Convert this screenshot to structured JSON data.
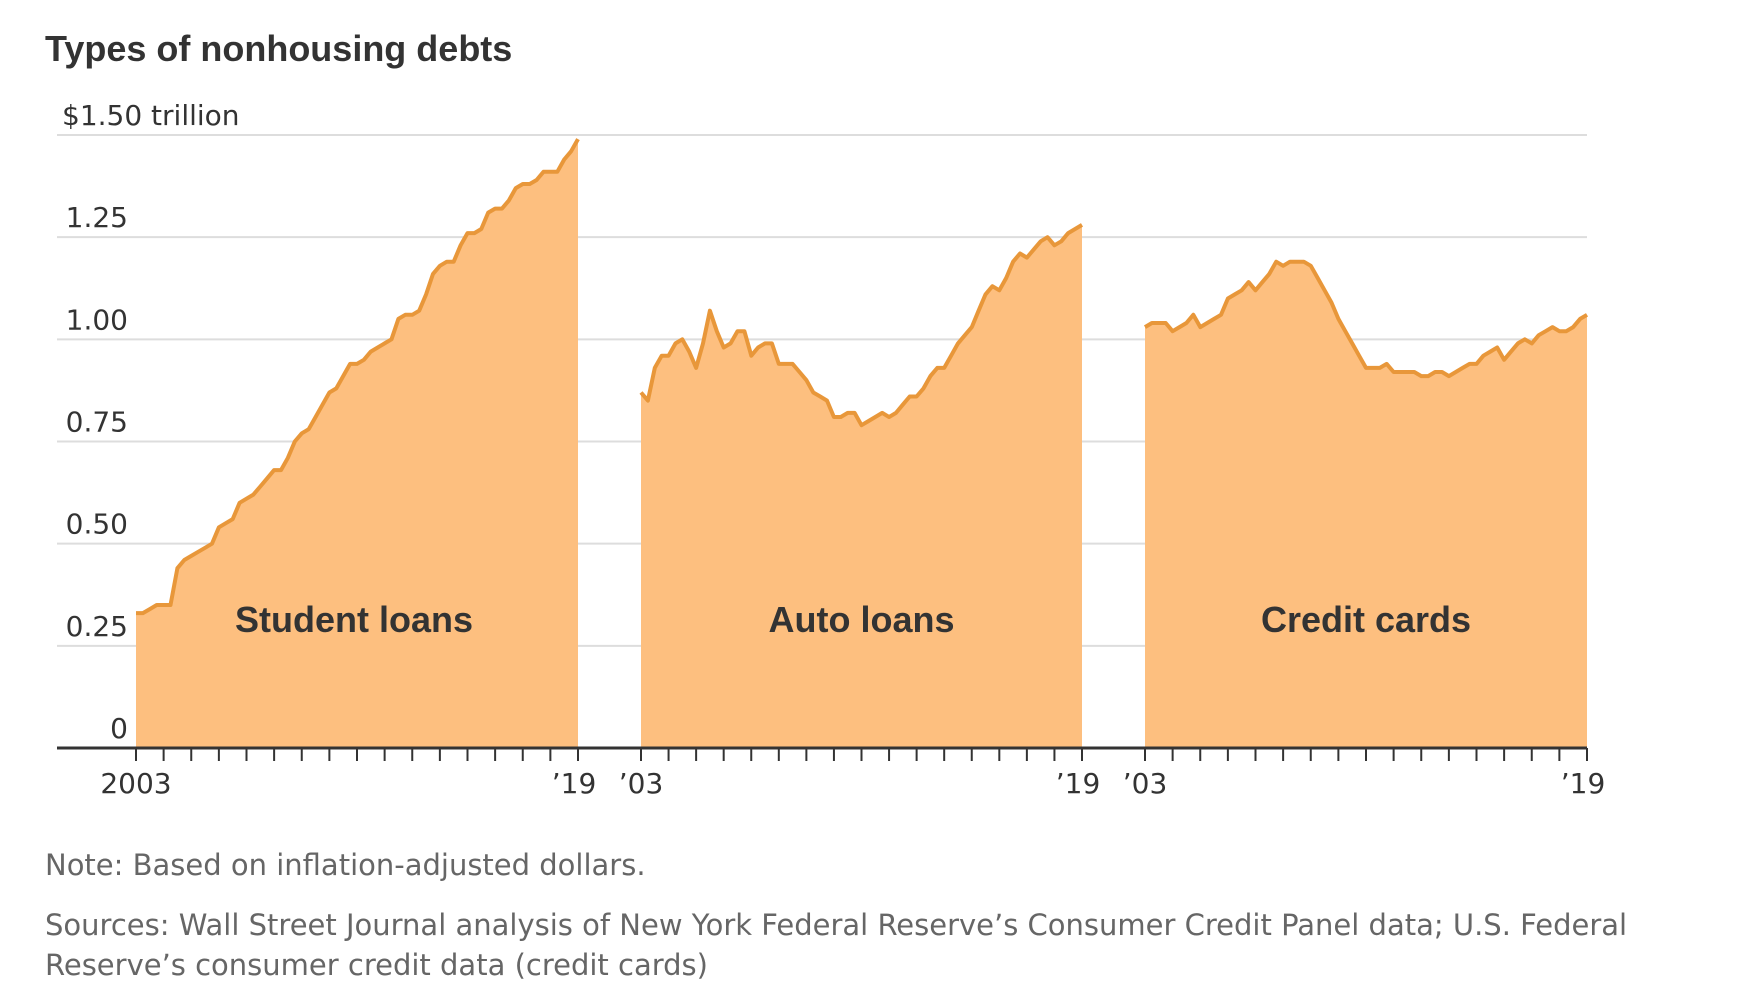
{
  "title": "Types of nonhousing debts",
  "note": "Note: Based on inflation-adjusted dollars.",
  "sources": "Sources: Wall Street Journal analysis of New York Federal Reserve’s Consumer Credit Panel data; U.S. Federal Reserve’s consumer credit data (credit cards)",
  "colors": {
    "fill": "#fdbf7f",
    "line": "#e8973a",
    "grid": "#dddddd",
    "axis": "#333333",
    "text": "#333333",
    "note": "#666666"
  },
  "chart_data": [
    {
      "type": "area",
      "panel_label": "Student loans",
      "start_tick_label": "2003",
      "end_tick_label": "’19",
      "x_range": [
        2003,
        2019
      ],
      "ylim": [
        0,
        1.5
      ],
      "y_ticks": [
        0,
        0.25,
        0.5,
        0.75,
        1.0,
        1.25,
        1.5
      ],
      "y_tick_labels": [
        "0",
        "0.25",
        "0.50",
        "0.75",
        "1.00",
        "1.25",
        "$1.50 trillion"
      ],
      "grid": true,
      "x": [
        2003.0,
        2003.25,
        2003.5,
        2003.75,
        2004.0,
        2004.25,
        2004.5,
        2004.75,
        2005.0,
        2005.25,
        2005.5,
        2005.75,
        2006.0,
        2006.25,
        2006.5,
        2006.75,
        2007.0,
        2007.25,
        2007.5,
        2007.75,
        2008.0,
        2008.25,
        2008.5,
        2008.75,
        2009.0,
        2009.25,
        2009.5,
        2009.75,
        2010.0,
        2010.25,
        2010.5,
        2010.75,
        2011.0,
        2011.25,
        2011.5,
        2011.75,
        2012.0,
        2012.25,
        2012.5,
        2012.75,
        2013.0,
        2013.25,
        2013.5,
        2013.75,
        2014.0,
        2014.25,
        2014.5,
        2014.75,
        2015.0,
        2015.25,
        2015.5,
        2015.75,
        2016.0,
        2016.25,
        2016.5,
        2016.75,
        2017.0,
        2017.25,
        2017.5,
        2017.75,
        2018.0,
        2018.25,
        2018.5,
        2018.75,
        2019.0
      ],
      "values": [
        0.33,
        0.33,
        0.34,
        0.35,
        0.35,
        0.35,
        0.44,
        0.46,
        0.47,
        0.48,
        0.49,
        0.5,
        0.54,
        0.55,
        0.56,
        0.6,
        0.61,
        0.62,
        0.64,
        0.66,
        0.68,
        0.68,
        0.71,
        0.75,
        0.77,
        0.78,
        0.81,
        0.84,
        0.87,
        0.88,
        0.91,
        0.94,
        0.94,
        0.95,
        0.97,
        0.98,
        0.99,
        1.0,
        1.05,
        1.06,
        1.06,
        1.07,
        1.11,
        1.16,
        1.18,
        1.19,
        1.19,
        1.23,
        1.26,
        1.26,
        1.27,
        1.31,
        1.32,
        1.32,
        1.34,
        1.37,
        1.38,
        1.38,
        1.39,
        1.41,
        1.41,
        1.41,
        1.44,
        1.46,
        1.49
      ]
    },
    {
      "type": "area",
      "panel_label": "Auto loans",
      "start_tick_label": "’03",
      "end_tick_label": "’19",
      "x_range": [
        2003,
        2019
      ],
      "ylim": [
        0,
        1.5
      ],
      "grid": true,
      "x": [
        2003.0,
        2003.25,
        2003.5,
        2003.75,
        2004.0,
        2004.25,
        2004.5,
        2004.75,
        2005.0,
        2005.25,
        2005.5,
        2005.75,
        2006.0,
        2006.25,
        2006.5,
        2006.75,
        2007.0,
        2007.25,
        2007.5,
        2007.75,
        2008.0,
        2008.25,
        2008.5,
        2008.75,
        2009.0,
        2009.25,
        2009.5,
        2009.75,
        2010.0,
        2010.25,
        2010.5,
        2010.75,
        2011.0,
        2011.25,
        2011.5,
        2011.75,
        2012.0,
        2012.25,
        2012.5,
        2012.75,
        2013.0,
        2013.25,
        2013.5,
        2013.75,
        2014.0,
        2014.25,
        2014.5,
        2014.75,
        2015.0,
        2015.25,
        2015.5,
        2015.75,
        2016.0,
        2016.25,
        2016.5,
        2016.75,
        2017.0,
        2017.25,
        2017.5,
        2017.75,
        2018.0,
        2018.25,
        2018.5,
        2018.75,
        2019.0
      ],
      "values": [
        0.87,
        0.85,
        0.93,
        0.96,
        0.96,
        0.99,
        1.0,
        0.97,
        0.93,
        0.99,
        1.07,
        1.02,
        0.98,
        0.99,
        1.02,
        1.02,
        0.96,
        0.98,
        0.99,
        0.99,
        0.94,
        0.94,
        0.94,
        0.92,
        0.9,
        0.87,
        0.86,
        0.85,
        0.81,
        0.81,
        0.82,
        0.82,
        0.79,
        0.8,
        0.81,
        0.82,
        0.81,
        0.82,
        0.84,
        0.86,
        0.86,
        0.88,
        0.91,
        0.93,
        0.93,
        0.96,
        0.99,
        1.01,
        1.03,
        1.07,
        1.11,
        1.13,
        1.12,
        1.15,
        1.19,
        1.21,
        1.2,
        1.22,
        1.24,
        1.25,
        1.23,
        1.24,
        1.26,
        1.27,
        1.28
      ]
    },
    {
      "type": "area",
      "panel_label": "Credit cards",
      "start_tick_label": "’03",
      "end_tick_label": "’19",
      "x_range": [
        2003,
        2019
      ],
      "ylim": [
        0,
        1.5
      ],
      "grid": true,
      "x": [
        2003.0,
        2003.25,
        2003.5,
        2003.75,
        2004.0,
        2004.25,
        2004.5,
        2004.75,
        2005.0,
        2005.25,
        2005.5,
        2005.75,
        2006.0,
        2006.25,
        2006.5,
        2006.75,
        2007.0,
        2007.25,
        2007.5,
        2007.75,
        2008.0,
        2008.25,
        2008.5,
        2008.75,
        2009.0,
        2009.25,
        2009.5,
        2009.75,
        2010.0,
        2010.25,
        2010.5,
        2010.75,
        2011.0,
        2011.25,
        2011.5,
        2011.75,
        2012.0,
        2012.25,
        2012.5,
        2012.75,
        2013.0,
        2013.25,
        2013.5,
        2013.75,
        2014.0,
        2014.25,
        2014.5,
        2014.75,
        2015.0,
        2015.25,
        2015.5,
        2015.75,
        2016.0,
        2016.25,
        2016.5,
        2016.75,
        2017.0,
        2017.25,
        2017.5,
        2017.75,
        2018.0,
        2018.25,
        2018.5,
        2018.75,
        2019.0
      ],
      "values": [
        1.03,
        1.04,
        1.04,
        1.04,
        1.02,
        1.03,
        1.04,
        1.06,
        1.03,
        1.04,
        1.05,
        1.06,
        1.1,
        1.11,
        1.12,
        1.14,
        1.12,
        1.14,
        1.16,
        1.19,
        1.18,
        1.19,
        1.19,
        1.19,
        1.18,
        1.15,
        1.12,
        1.09,
        1.05,
        1.02,
        0.99,
        0.96,
        0.93,
        0.93,
        0.93,
        0.94,
        0.92,
        0.92,
        0.92,
        0.92,
        0.91,
        0.91,
        0.92,
        0.92,
        0.91,
        0.92,
        0.93,
        0.94,
        0.94,
        0.96,
        0.97,
        0.98,
        0.95,
        0.97,
        0.99,
        1.0,
        0.99,
        1.01,
        1.02,
        1.03,
        1.02,
        1.02,
        1.03,
        1.05,
        1.06
      ]
    }
  ]
}
